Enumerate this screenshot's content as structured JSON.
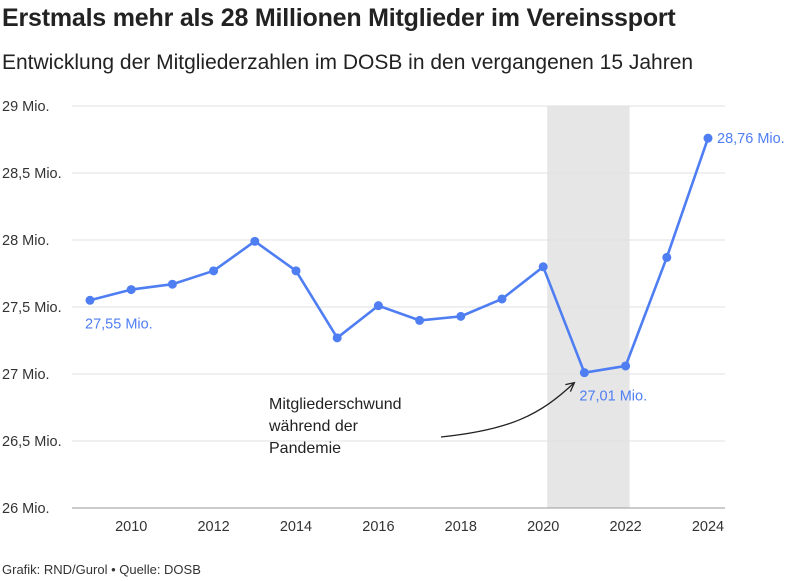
{
  "title": "Erstmals mehr als 28 Millionen Mitglieder im Vereinssport",
  "subtitle": "Entwicklung der Mitgliederzahlen im DOSB in den vergangenen 15 Jahren",
  "footer": "Grafik: RND/Gurol • Quelle: DOSB",
  "colors": {
    "line": "#4f7ef3",
    "highlight_band": "#e6e6e6",
    "grid": "#e0e0e0"
  },
  "chart_data": {
    "type": "line",
    "title": "Erstmals mehr als 28 Millionen Mitglieder im Vereinssport",
    "subtitle": "Entwicklung der Mitgliederzahlen im DOSB in den vergangenen 15 Jahren",
    "xlabel": "",
    "ylabel": "",
    "x": [
      2009,
      2010,
      2011,
      2012,
      2013,
      2014,
      2015,
      2016,
      2017,
      2018,
      2019,
      2020,
      2021,
      2022,
      2023,
      2024
    ],
    "values": [
      27.55,
      27.63,
      27.67,
      27.77,
      27.99,
      27.77,
      27.27,
      27.51,
      27.4,
      27.43,
      27.56,
      27.8,
      27.01,
      27.06,
      27.87,
      28.76
    ],
    "unit": "Mio.",
    "ylim": [
      26,
      29
    ],
    "yticks": [
      26,
      26.5,
      27,
      27.5,
      28,
      28.5,
      29
    ],
    "ytick_labels": [
      "26 Mio.",
      "26,5 Mio.",
      "27 Mio.",
      "27,5 Mio.",
      "28 Mio.",
      "28,5 Mio.",
      "29 Mio."
    ],
    "xticks": [
      2010,
      2012,
      2014,
      2016,
      2018,
      2020,
      2022,
      2024
    ],
    "xtick_labels": [
      "2010",
      "2012",
      "2014",
      "2016",
      "2018",
      "2020",
      "2022",
      "2024"
    ],
    "grid": true,
    "highlight_range": [
      2020,
      2022
    ],
    "data_labels": [
      {
        "x": 2009,
        "y": 27.55,
        "text": "27,55 Mio.",
        "position": "below-right"
      },
      {
        "x": 2021,
        "y": 27.01,
        "text": "27,01 Mio.",
        "position": "below-right"
      },
      {
        "x": 2024,
        "y": 28.76,
        "text": "28,76 Mio.",
        "position": "right"
      }
    ],
    "annotation": {
      "lines": [
        "Mitgliederschwund",
        "während der",
        "Pandemie"
      ],
      "points_to": {
        "x": 2021,
        "y": 27.01
      }
    }
  }
}
